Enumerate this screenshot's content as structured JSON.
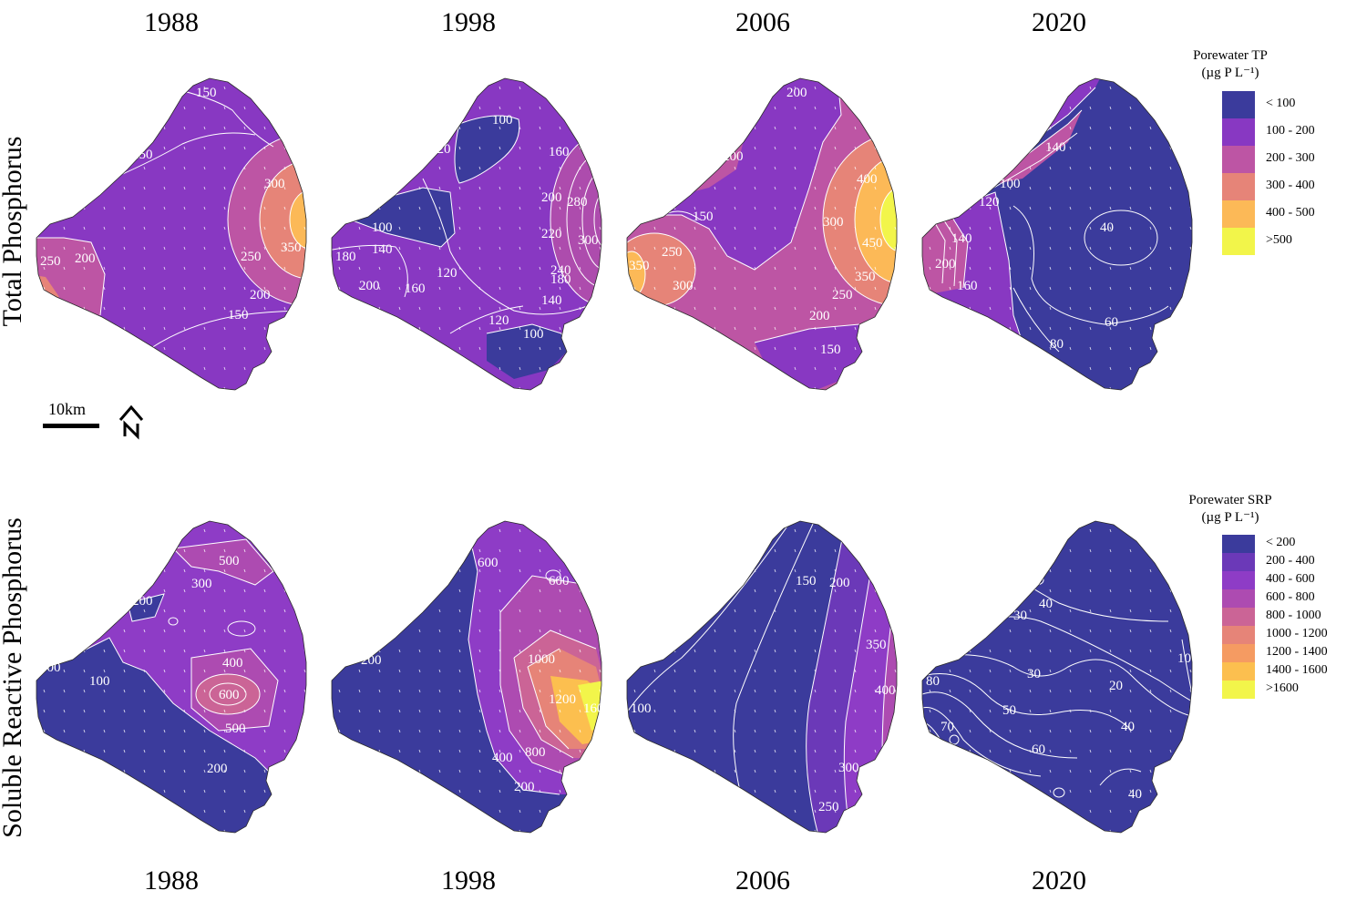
{
  "years_top": [
    "1988",
    "1998",
    "2006",
    "2020"
  ],
  "years_bottom": [
    "1988",
    "1998",
    "2006",
    "2020"
  ],
  "row_labels": {
    "top": "Total Phosphorus",
    "bottom": "Soluble Reactive Phosphorus"
  },
  "scale_bar": {
    "label": "10km",
    "north_icon": "north-arrow-icon"
  },
  "legend_tp": {
    "title_line1": "Porewater TP",
    "title_line2": "(µg P L⁻¹)",
    "items": [
      {
        "label": "< 100",
        "color": "#3b3b9c"
      },
      {
        "label": "100 - 200",
        "color": "#8838c2"
      },
      {
        "label": "200 - 300",
        "color": "#bd55a4"
      },
      {
        "label": "300 - 400",
        "color": "#e68478"
      },
      {
        "label": "400 - 500",
        "color": "#fcb957"
      },
      {
        "label": ">500",
        "color": "#f2f54a"
      }
    ]
  },
  "legend_srp": {
    "title_line1": "Porewater SRP",
    "title_line2": "(µg P L⁻¹)",
    "items": [
      {
        "label": "< 200",
        "color": "#3b3b9c"
      },
      {
        "label": "200 - 400",
        "color": "#6b39b8"
      },
      {
        "label": "400 - 600",
        "color": "#8e3cc6"
      },
      {
        "label": "600 - 800",
        "color": "#ad4bb1"
      },
      {
        "label": "800 - 1000",
        "color": "#cb6496"
      },
      {
        "label": "1000 - 1200",
        "color": "#e68478"
      },
      {
        "label": "1200 - 1400",
        "color": "#f59b62"
      },
      {
        "label": "1400 - 1600",
        "color": "#fcbf4f"
      },
      {
        "label": ">1600",
        "color": "#f2f54a"
      }
    ]
  },
  "maps_tp": [
    {
      "year": "1988",
      "base": "#8838c2",
      "contour_labels": [
        "150",
        "150",
        "200",
        "250",
        "300",
        "350",
        "250",
        "200",
        "150"
      ]
    },
    {
      "year": "1998",
      "base": "#8838c2",
      "contour_labels": [
        "100",
        "120",
        "100",
        "140",
        "180",
        "200",
        "160",
        "120",
        "160",
        "200",
        "220",
        "280",
        "300",
        "240",
        "180",
        "140",
        "120",
        "100"
      ]
    },
    {
      "year": "2006",
      "base": "#bd55a4",
      "contour_labels": [
        "200",
        "200",
        "150",
        "250",
        "350",
        "300",
        "300",
        "400",
        "450",
        "350",
        "250",
        "200",
        "150"
      ]
    },
    {
      "year": "2020",
      "base": "#3b3b9c",
      "contour_labels": [
        "140",
        "120",
        "100",
        "40",
        "140",
        "200",
        "160",
        "60",
        "80"
      ]
    }
  ],
  "maps_srp": [
    {
      "year": "1988",
      "base": "#3b3b9c",
      "contour_labels": [
        "500",
        "300",
        "200",
        "300",
        "100",
        "400",
        "600",
        "500",
        "200"
      ]
    },
    {
      "year": "1998",
      "base": "#3b3b9c",
      "contour_labels": [
        "600",
        "600",
        "200",
        "1000",
        "1200",
        "1600",
        "800",
        "400",
        "200"
      ]
    },
    {
      "year": "2006",
      "base": "#3b3b9c",
      "contour_labels": [
        "150",
        "200",
        "350",
        "400",
        "100",
        "300",
        "250"
      ]
    },
    {
      "year": "2020",
      "base": "#3b3b9c",
      "contour_labels": [
        "40",
        "30",
        "30",
        "20",
        "10",
        "80",
        "50",
        "70",
        "60",
        "40",
        "40"
      ]
    }
  ]
}
